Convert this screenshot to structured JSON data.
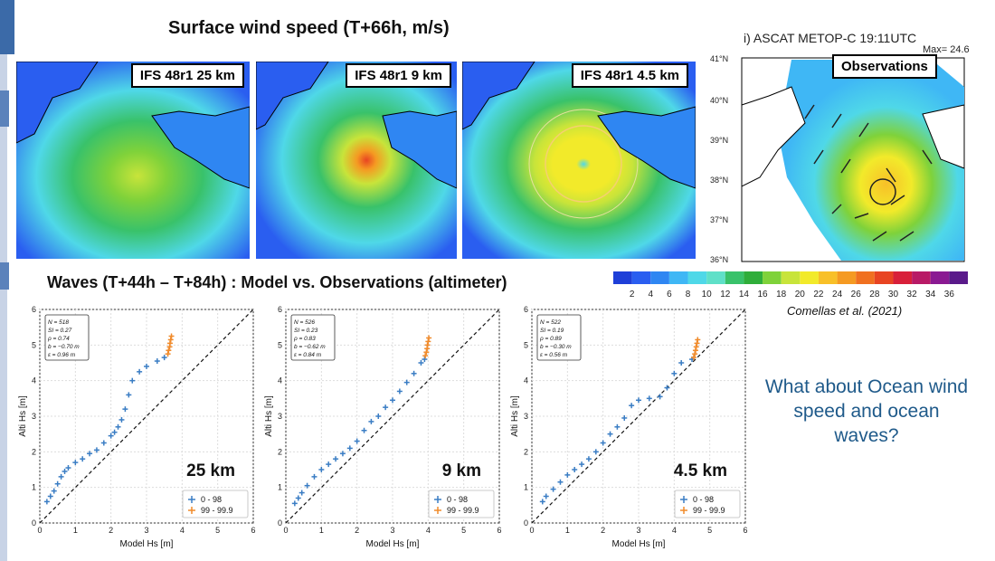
{
  "slide": {
    "top_title": "Surface wind speed (T+66h, m/s)",
    "waves_title": "Waves (T+44h – T+84h) : Model vs. Observations (altimeter)",
    "question": "What about Ocean wind speed and ocean waves?",
    "citation": "Comellas et al. (2021)"
  },
  "maps": [
    {
      "label": "IFS 48r1 25 km"
    },
    {
      "label": "IFS 48r1 9 km"
    },
    {
      "label": "IFS 48r1 4.5 km"
    }
  ],
  "obs": {
    "title": "i) ASCAT METOP-C 19:11UTC",
    "max_label": "Max= 24.6",
    "label": "Observations",
    "lat_labels": [
      "41°N",
      "40°N",
      "39°N",
      "38°N",
      "37°N",
      "36°N"
    ]
  },
  "colorbar": {
    "ticks": [
      "2",
      "4",
      "6",
      "8",
      "10",
      "12",
      "14",
      "16",
      "18",
      "20",
      "22",
      "24",
      "26",
      "28",
      "30",
      "32",
      "34",
      "36"
    ],
    "colors": [
      "#1e3fd8",
      "#2a5ef0",
      "#2f86f2",
      "#3fb7f5",
      "#4fd8e8",
      "#5fe0c8",
      "#39c26a",
      "#2fae3a",
      "#7fd23a",
      "#c8e43a",
      "#f2ea2a",
      "#f8c028",
      "#f59a22",
      "#f07020",
      "#e84422",
      "#d8203a",
      "#b81a66",
      "#8a1a92",
      "#5a1a8a"
    ]
  },
  "chart_data": [
    {
      "type": "scatter",
      "panel_label": "25 km",
      "xlabel": "Model Hs [m]",
      "ylabel": "Alti Hs [m]",
      "xlim": [
        0,
        6
      ],
      "ylim": [
        0,
        6
      ],
      "ticks": [
        0,
        1,
        2,
        3,
        4,
        5,
        6
      ],
      "stats": [
        "N = 518",
        "SI = 0.27",
        "ρ = 0.74",
        "b = −0.70 m",
        "ε = 0.96 m"
      ],
      "legend": [
        "0 - 98",
        "99 - 99.9"
      ],
      "series": [
        {
          "name": "0 - 98",
          "color": "#3a7dc4",
          "points": [
            [
              0.2,
              0.6
            ],
            [
              0.3,
              0.75
            ],
            [
              0.4,
              0.9
            ],
            [
              0.5,
              1.1
            ],
            [
              0.6,
              1.3
            ],
            [
              0.7,
              1.45
            ],
            [
              0.8,
              1.55
            ],
            [
              1.0,
              1.7
            ],
            [
              1.2,
              1.8
            ],
            [
              1.4,
              1.95
            ],
            [
              1.6,
              2.05
            ],
            [
              1.8,
              2.25
            ],
            [
              2.0,
              2.45
            ],
            [
              2.1,
              2.55
            ],
            [
              2.2,
              2.7
            ],
            [
              2.3,
              2.9
            ],
            [
              2.4,
              3.2
            ],
            [
              2.5,
              3.6
            ],
            [
              2.6,
              4.0
            ],
            [
              2.8,
              4.25
            ],
            [
              3.0,
              4.4
            ],
            [
              3.3,
              4.55
            ],
            [
              3.5,
              4.65
            ]
          ]
        },
        {
          "name": "99 - 99.9",
          "color": "#f08a2a",
          "points": [
            [
              3.6,
              4.75
            ],
            [
              3.62,
              4.85
            ],
            [
              3.65,
              4.95
            ],
            [
              3.66,
              5.05
            ],
            [
              3.68,
              5.15
            ],
            [
              3.7,
              5.25
            ]
          ]
        }
      ]
    },
    {
      "type": "scatter",
      "panel_label": "9 km",
      "xlabel": "Model Hs [m]",
      "ylabel": "Alti Hs [m]",
      "xlim": [
        0,
        6
      ],
      "ylim": [
        0,
        6
      ],
      "ticks": [
        0,
        1,
        2,
        3,
        4,
        5,
        6
      ],
      "stats": [
        "N = 526",
        "SI = 0.23",
        "ρ = 0.83",
        "b = −0.62 m",
        "ε = 0.84 m"
      ],
      "legend": [
        "0 - 98",
        "99 - 99.9"
      ],
      "series": [
        {
          "name": "0 - 98",
          "color": "#3a7dc4",
          "points": [
            [
              0.25,
              0.55
            ],
            [
              0.35,
              0.7
            ],
            [
              0.45,
              0.85
            ],
            [
              0.6,
              1.05
            ],
            [
              0.8,
              1.3
            ],
            [
              1.0,
              1.5
            ],
            [
              1.2,
              1.65
            ],
            [
              1.4,
              1.8
            ],
            [
              1.6,
              1.95
            ],
            [
              1.8,
              2.1
            ],
            [
              2.0,
              2.3
            ],
            [
              2.2,
              2.6
            ],
            [
              2.4,
              2.85
            ],
            [
              2.6,
              3.0
            ],
            [
              2.8,
              3.25
            ],
            [
              3.0,
              3.45
            ],
            [
              3.2,
              3.7
            ],
            [
              3.4,
              3.95
            ],
            [
              3.6,
              4.2
            ],
            [
              3.8,
              4.5
            ],
            [
              3.9,
              4.6
            ]
          ]
        },
        {
          "name": "99 - 99.9",
          "color": "#f08a2a",
          "points": [
            [
              3.92,
              4.7
            ],
            [
              3.95,
              4.8
            ],
            [
              3.97,
              4.9
            ],
            [
              3.98,
              5.0
            ],
            [
              4.0,
              5.1
            ],
            [
              4.02,
              5.2
            ]
          ]
        }
      ]
    },
    {
      "type": "scatter",
      "panel_label": "4.5 km",
      "xlabel": "Model Hs [m]",
      "ylabel": "Alti Hs [m]",
      "xlim": [
        0,
        6
      ],
      "ylim": [
        0,
        6
      ],
      "ticks": [
        0,
        1,
        2,
        3,
        4,
        5,
        6
      ],
      "stats": [
        "N = 522",
        "SI = 0.19",
        "ρ = 0.89",
        "b = −0.30 m",
        "ε = 0.56 m"
      ],
      "legend": [
        "0 - 98",
        "99 - 99.9"
      ],
      "series": [
        {
          "name": "0 - 98",
          "color": "#3a7dc4",
          "points": [
            [
              0.3,
              0.6
            ],
            [
              0.4,
              0.75
            ],
            [
              0.6,
              0.95
            ],
            [
              0.8,
              1.15
            ],
            [
              1.0,
              1.35
            ],
            [
              1.2,
              1.5
            ],
            [
              1.4,
              1.65
            ],
            [
              1.6,
              1.8
            ],
            [
              1.8,
              2.0
            ],
            [
              2.0,
              2.25
            ],
            [
              2.2,
              2.5
            ],
            [
              2.4,
              2.7
            ],
            [
              2.6,
              2.95
            ],
            [
              2.8,
              3.3
            ],
            [
              3.0,
              3.45
            ],
            [
              3.3,
              3.5
            ],
            [
              3.6,
              3.55
            ],
            [
              3.8,
              3.8
            ],
            [
              4.0,
              4.2
            ],
            [
              4.2,
              4.5
            ],
            [
              4.5,
              4.6
            ]
          ]
        },
        {
          "name": "99 - 99.9",
          "color": "#f08a2a",
          "points": [
            [
              4.55,
              4.65
            ],
            [
              4.58,
              4.75
            ],
            [
              4.6,
              4.85
            ],
            [
              4.62,
              4.95
            ],
            [
              4.64,
              5.05
            ],
            [
              4.66,
              5.15
            ]
          ]
        }
      ]
    }
  ]
}
